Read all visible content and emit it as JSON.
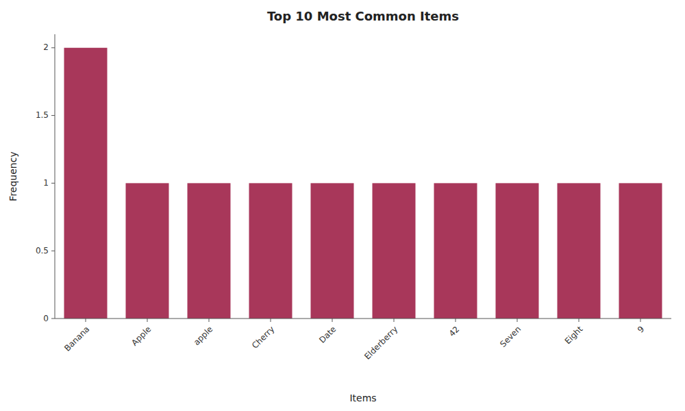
{
  "chart_data": {
    "type": "bar",
    "title": "Top 10 Most Common Items",
    "xlabel": "Items",
    "ylabel": "Frequency",
    "categories": [
      "Banana",
      "Apple",
      "apple",
      "Cherry",
      "Date",
      "Elderberry",
      "42",
      "Seven",
      "Eight",
      "9"
    ],
    "values": [
      2,
      1,
      1,
      1,
      1,
      1,
      1,
      1,
      1,
      1
    ],
    "color": "#a8375a",
    "ylim": [
      0,
      2.1
    ],
    "yticks": [
      0,
      0.5,
      1,
      1.5,
      2
    ],
    "grid": false
  }
}
